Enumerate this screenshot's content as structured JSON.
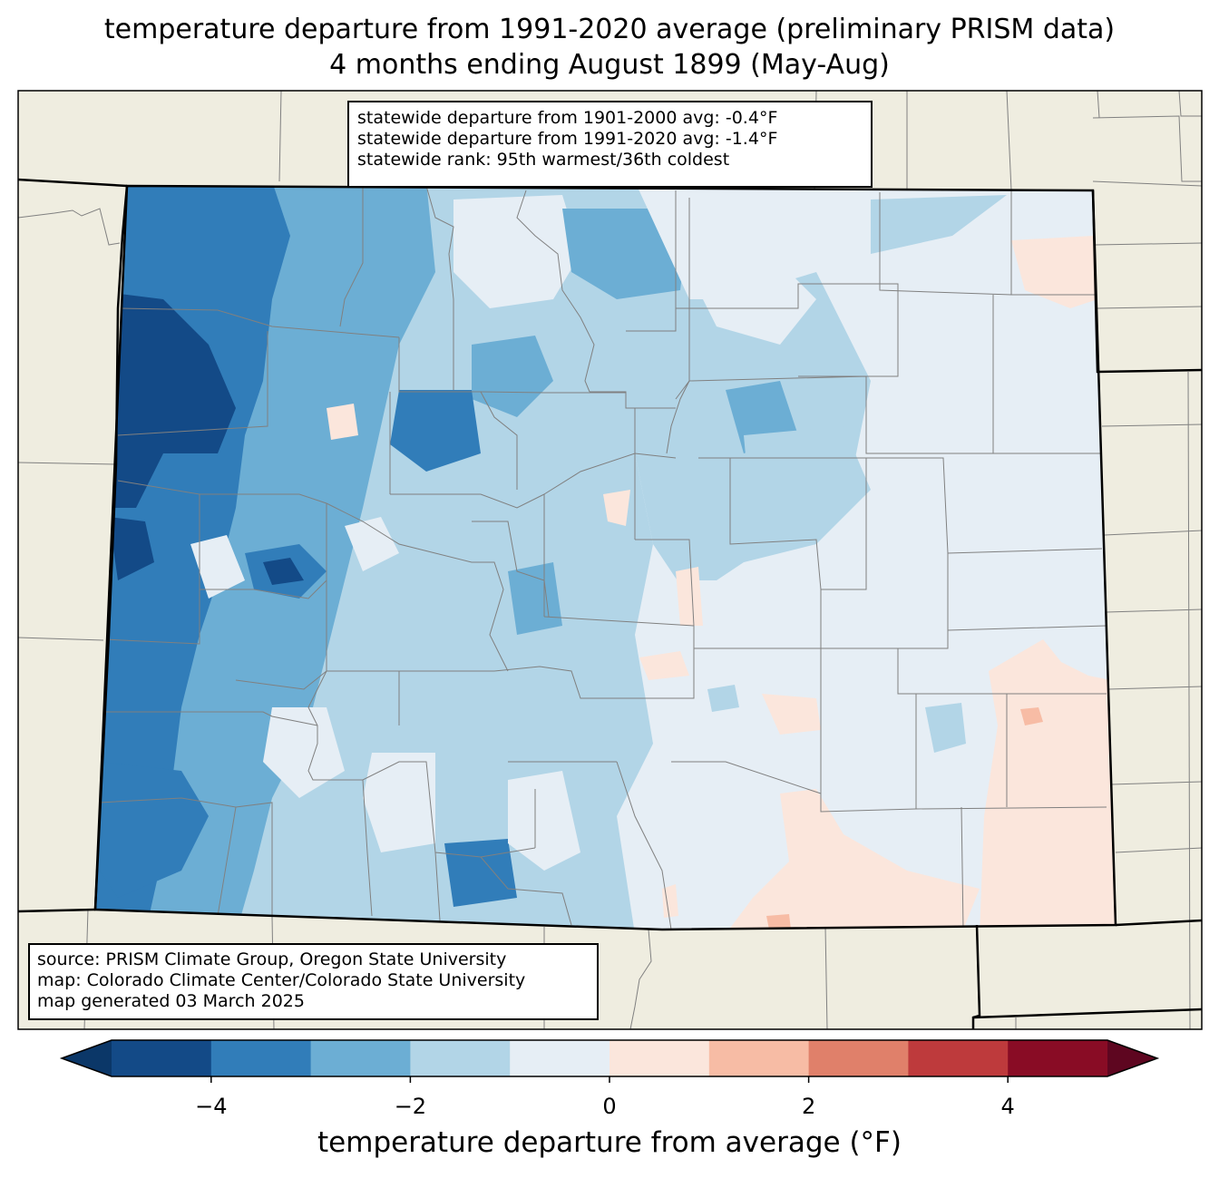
{
  "title": {
    "line1": "temperature departure from 1991-2020 average (preliminary PRISM data)",
    "line2": "4 months ending August 1899 (May-Aug)"
  },
  "stats": {
    "line1": "statewide departure from 1901-2000 avg: -0.4°F",
    "line2": "statewide departure from 1991-2020 avg: -1.4°F",
    "line3": "statewide rank: 95th warmest/36th coldest"
  },
  "credits": {
    "line1": "source: PRISM Climate Group, Oregon State University",
    "line2": "map: Colorado Climate Center/Colorado State University",
    "line3": "map generated 03 March 2025"
  },
  "colorbar": {
    "label": "temperature departure from average (°F)",
    "bounds": [
      -5,
      -4,
      -3,
      -2,
      -1,
      0,
      1,
      2,
      3,
      4,
      5
    ],
    "colors": [
      "#0b3768",
      "#134a87",
      "#317db9",
      "#6caed4",
      "#b2d5e7",
      "#e6eef5",
      "#fbe6dc",
      "#f7bca5",
      "#e0806a",
      "#be3a3c",
      "#890c25",
      "#5e0620"
    ],
    "ticks": [
      "−4",
      "−2",
      "0",
      "2",
      "4"
    ]
  },
  "map": {
    "background_color": "#efede0",
    "state_border_color": "#000000",
    "county_line_color": "#808080"
  }
}
